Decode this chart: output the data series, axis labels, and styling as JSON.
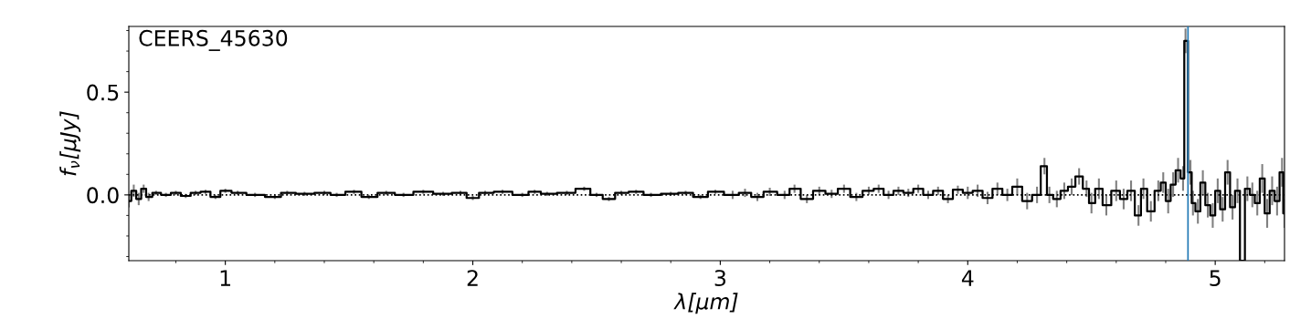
{
  "chart_data": {
    "type": "step",
    "xlabel": "λ[μm]",
    "ylabel": "f$_{ν}$[μJy]",
    "annotations": [
      "CEERS_45630"
    ],
    "xlim": [
      0.61,
      5.28
    ],
    "ylim": [
      -0.32,
      0.82
    ],
    "xticks": [
      1,
      2,
      3,
      4,
      5
    ],
    "yticks": [
      {
        "value": 0.0,
        "label": "0.0"
      },
      {
        "value": 0.5,
        "label": "0.5"
      }
    ],
    "grid": false,
    "ref_lines": [
      {
        "axis": "y",
        "value": 0,
        "color": "#000000",
        "line_style": "dotted"
      },
      {
        "axis": "x",
        "value": 4.89,
        "color": "#1f77b4",
        "line_style": "solid"
      }
    ],
    "series": [
      {
        "color": "#000000",
        "x": [
          0.61,
          0.63,
          0.65,
          0.67,
          0.69,
          0.72,
          0.76,
          0.8,
          0.84,
          0.88,
          0.92,
          0.96,
          1.0,
          1.05,
          1.12,
          1.2,
          1.25,
          1.32,
          1.4,
          1.45,
          1.52,
          1.58,
          1.65,
          1.72,
          1.8,
          1.88,
          1.95,
          2.0,
          2.05,
          2.12,
          2.2,
          2.25,
          2.3,
          2.38,
          2.45,
          2.5,
          2.55,
          2.6,
          2.66,
          2.72,
          2.8,
          2.86,
          2.92,
          2.98,
          3.05,
          3.1,
          3.15,
          3.2,
          3.26,
          3.3,
          3.35,
          3.4,
          3.45,
          3.5,
          3.55,
          3.6,
          3.64,
          3.68,
          3.72,
          3.76,
          3.8,
          3.84,
          3.88,
          3.92,
          3.96,
          4.0,
          4.04,
          4.08,
          4.12,
          4.16,
          4.2,
          4.24,
          4.28,
          4.31,
          4.33,
          4.36,
          4.39,
          4.42,
          4.45,
          4.48,
          4.5,
          4.53,
          4.56,
          4.6,
          4.63,
          4.66,
          4.69,
          4.71,
          4.74,
          4.77,
          4.79,
          4.81,
          4.83,
          4.85,
          4.87,
          4.88,
          4.9,
          4.91,
          4.93,
          4.95,
          4.97,
          4.99,
          5.01,
          5.03,
          5.05,
          5.07,
          5.09,
          5.11,
          5.13,
          5.15,
          5.17,
          5.19,
          5.21,
          5.23,
          5.25,
          5.27,
          5.28
        ],
        "values": [
          -0.03,
          0.02,
          -0.02,
          0.03,
          -0.01,
          0.01,
          0.0,
          0.01,
          -0.005,
          0.01,
          0.015,
          -0.01,
          0.02,
          0.01,
          0.0,
          -0.01,
          0.01,
          0.005,
          0.01,
          0.0,
          0.015,
          -0.01,
          0.01,
          0.0,
          0.015,
          0.005,
          0.01,
          -0.015,
          0.01,
          0.015,
          0.0,
          0.015,
          0.005,
          0.01,
          0.03,
          0.0,
          -0.02,
          0.01,
          0.015,
          0.0,
          0.005,
          0.01,
          -0.01,
          0.015,
          0.0,
          0.01,
          -0.01,
          0.015,
          0.0,
          0.03,
          -0.02,
          0.02,
          0.005,
          0.03,
          -0.01,
          0.02,
          0.03,
          0.0,
          0.02,
          0.01,
          0.03,
          0.0,
          0.02,
          -0.02,
          0.025,
          0.01,
          0.02,
          -0.015,
          0.03,
          0.0,
          0.04,
          -0.03,
          0.0,
          0.14,
          0.0,
          -0.02,
          0.02,
          0.04,
          0.09,
          0.03,
          -0.04,
          0.03,
          -0.05,
          0.02,
          -0.02,
          0.02,
          -0.1,
          0.03,
          -0.08,
          0.02,
          0.06,
          -0.03,
          0.05,
          0.12,
          0.08,
          0.75,
          0.11,
          -0.04,
          -0.08,
          0.06,
          -0.05,
          -0.1,
          0.02,
          -0.07,
          0.11,
          -0.06,
          0.02,
          -0.32,
          0.03,
          0.0,
          -0.04,
          0.08,
          -0.09,
          0.02,
          -0.03,
          0.11,
          -0.09
        ],
        "errors": [
          0.03,
          0.03,
          0.03,
          0.02,
          0.02,
          0.01,
          0.01,
          0.01,
          0.01,
          0.01,
          0.01,
          0.01,
          0.01,
          0.01,
          0.01,
          0.01,
          0.01,
          0.01,
          0.01,
          0.01,
          0.01,
          0.01,
          0.01,
          0.01,
          0.01,
          0.01,
          0.01,
          0.01,
          0.01,
          0.01,
          0.01,
          0.01,
          0.01,
          0.01,
          0.01,
          0.01,
          0.01,
          0.01,
          0.01,
          0.01,
          0.01,
          0.01,
          0.01,
          0.01,
          0.02,
          0.02,
          0.02,
          0.02,
          0.02,
          0.02,
          0.02,
          0.02,
          0.02,
          0.02,
          0.02,
          0.02,
          0.02,
          0.02,
          0.02,
          0.02,
          0.02,
          0.02,
          0.02,
          0.02,
          0.02,
          0.03,
          0.03,
          0.03,
          0.03,
          0.03,
          0.04,
          0.04,
          0.04,
          0.04,
          0.04,
          0.04,
          0.04,
          0.04,
          0.04,
          0.04,
          0.05,
          0.05,
          0.05,
          0.05,
          0.05,
          0.05,
          0.05,
          0.05,
          0.05,
          0.05,
          0.05,
          0.06,
          0.06,
          0.06,
          0.06,
          0.06,
          0.06,
          0.06,
          0.06,
          0.06,
          0.06,
          0.06,
          0.06,
          0.06,
          0.06,
          0.06,
          0.06,
          0.0,
          0.06,
          0.06,
          0.06,
          0.07,
          0.07,
          0.07,
          0.07,
          0.07,
          0.07
        ]
      }
    ]
  }
}
